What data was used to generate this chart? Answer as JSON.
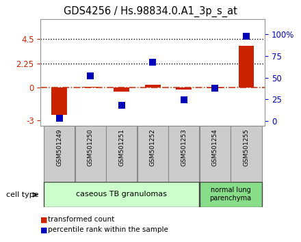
{
  "title": "GDS4256 / Hs.98834.0.A1_3p_s_at",
  "samples": [
    "GSM501249",
    "GSM501250",
    "GSM501251",
    "GSM501252",
    "GSM501253",
    "GSM501254",
    "GSM501255"
  ],
  "transformed_count": [
    -2.5,
    0.12,
    -0.35,
    0.28,
    -0.18,
    -0.05,
    3.85
  ],
  "percentile_rank_raw": [
    3,
    52,
    18,
    68,
    24,
    38,
    98
  ],
  "ylim_left": [
    -3.5,
    6.3
  ],
  "ylim_right": [
    -6.0,
    117.6
  ],
  "yticks_left": [
    -3,
    0,
    2.25,
    4.5
  ],
  "yticks_right": [
    0,
    25,
    50,
    75,
    100
  ],
  "bar_color": "#cc2200",
  "scatter_color": "#0000bb",
  "bar_width": 0.5,
  "scatter_size": 55,
  "background_color": "#ffffff",
  "group1_label": "caseous TB granulomas",
  "group1_n": 5,
  "group2_label": "normal lung\nparenchyma",
  "group2_n": 2,
  "group1_color": "#ccffcc",
  "group2_color": "#88dd88",
  "cell_type_label": "cell type",
  "legend_bar_label": "transformed count",
  "legend_scatter_label": "percentile rank within the sample",
  "sample_box_color": "#cccccc",
  "sample_box_edge": "#888888",
  "spine_color": "#999999"
}
